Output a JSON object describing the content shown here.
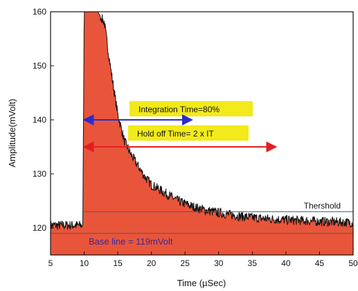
{
  "chart_data": {
    "type": "area",
    "title": "",
    "xlabel": "Time (µSec)",
    "ylabel": "Amplitude(mVolt)",
    "xlim": [
      5,
      50
    ],
    "ylim": [
      115,
      160
    ],
    "xticks": [
      5,
      10,
      15,
      20,
      25,
      30,
      35,
      40,
      45,
      50
    ],
    "yticks": [
      120,
      130,
      140,
      150,
      160
    ],
    "grid": false,
    "fill_color": "#e9553a",
    "line_color": "#111111",
    "series": [
      {
        "values_description": "noisy detector pulse",
        "x": [
          5,
          9.8,
          10,
          10.2,
          12,
          13,
          14,
          15,
          16,
          17,
          18,
          19,
          20,
          22,
          24,
          26,
          28,
          30,
          33,
          36,
          40,
          45,
          50
        ],
        "y": [
          120.5,
          120.5,
          160,
          160,
          160,
          158,
          149,
          141,
          136,
          133.5,
          131.5,
          129.5,
          128,
          126.5,
          125,
          124,
          123.3,
          122.8,
          122.2,
          121.8,
          121.5,
          121.2,
          121
        ]
      }
    ],
    "threshold": {
      "label": "Thershold",
      "value": 123
    },
    "baseline": {
      "label": "Base line = 119mVolt",
      "value": 119
    },
    "annotations": [
      {
        "label": "Integration Time=80%",
        "arrow_from_x": 10,
        "arrow_to_x": 26,
        "arrow_y": 140,
        "arrow_color": "#2b2bd0",
        "box_color": "#f2ea1a"
      },
      {
        "label": "Hold off  Time= 2 x IT",
        "arrow_from_x": 10,
        "arrow_to_x": 38.5,
        "arrow_y": 135,
        "arrow_color": "#e02020",
        "box_color": "#f2ea1a"
      }
    ]
  }
}
